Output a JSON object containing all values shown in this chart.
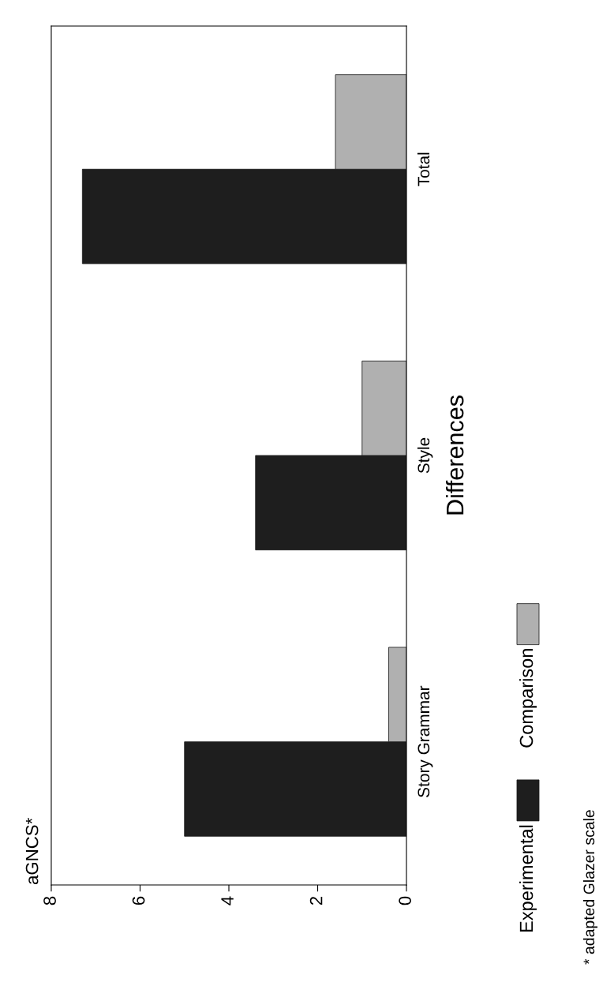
{
  "chart_data": {
    "type": "bar",
    "orientation": "horizontal",
    "ylabel": "Differences",
    "categories": [
      "Total",
      "Style",
      "Story Grammar"
    ],
    "series": [
      {
        "name": "Experimental",
        "color": "#1e1e1e",
        "values": [
          7.3,
          3.4,
          5.0
        ]
      },
      {
        "name": "Comparison",
        "color": "#b0b0b0",
        "values": [
          1.6,
          1.0,
          0.4
        ]
      }
    ],
    "xlim": [
      8,
      0
    ],
    "xticks": [
      8,
      6,
      4,
      2,
      0
    ],
    "grid": false,
    "legend": "right",
    "annotations": [
      "aGNCS*",
      "* adapted Glazer scale"
    ]
  }
}
